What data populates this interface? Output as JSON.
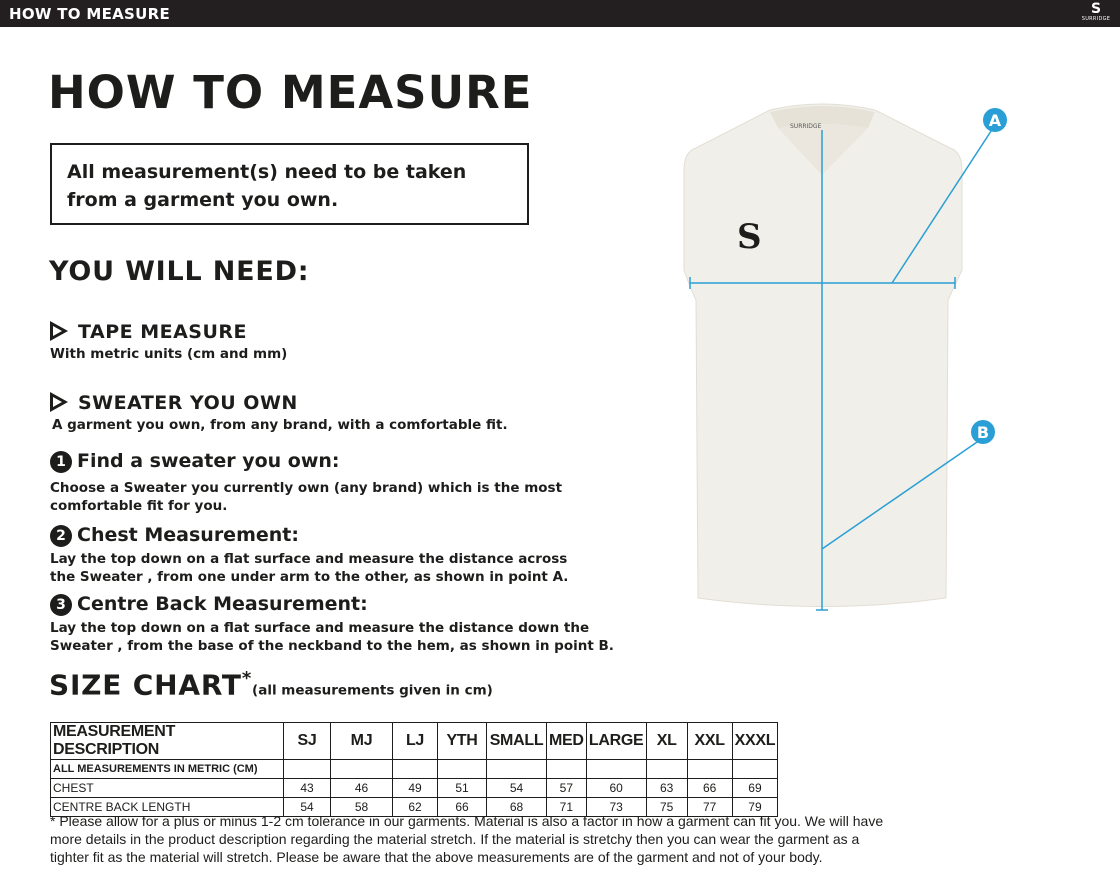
{
  "header": {
    "title": "HOW TO MEASURE",
    "logo_text": "SURRIDGE"
  },
  "title": "HOW TO MEASURE",
  "notice": "All measurement(s) need to be taken from a garment you own.",
  "you_will_need": {
    "heading": "YOU WILL NEED:",
    "items": [
      {
        "title": "TAPE MEASURE",
        "desc": "With metric units (cm and mm)"
      },
      {
        "title": "SWEATER YOU OWN",
        "desc": "A garment you own, from any brand, with a comfortable fit."
      }
    ]
  },
  "steps": [
    {
      "num": "1",
      "title": "Find a sweater you own:",
      "desc": "Choose a Sweater you currently own (any brand) which is the most comfortable fit for you."
    },
    {
      "num": "2",
      "title": "Chest Measurement:",
      "desc": "Lay the top down on a flat surface and measure the distance across the Sweater , from one under arm to the other, as shown in point A."
    },
    {
      "num": "3",
      "title": "Centre Back Measurement:",
      "desc": "Lay the top down on a flat surface and measure the distance down the Sweater , from the base of the neckband to the hem, as shown in point B."
    }
  ],
  "size_chart": {
    "heading": "SIZE CHART",
    "asterisk": "*",
    "subheading": "(all measurements given in cm)",
    "header": [
      "MEASUREMENT DESCRIPTION",
      "SJ",
      "MJ",
      "LJ",
      "YTH",
      "SMALL",
      "MED",
      "LARGE",
      "XL",
      "XXL",
      "XXXL"
    ],
    "metric_label": "ALL MEASUREMENTS IN METRIC (CM)",
    "rows": [
      {
        "label": "CHEST",
        "values": [
          "43",
          "46",
          "49",
          "51",
          "54",
          "57",
          "60",
          "63",
          "66",
          "69"
        ]
      },
      {
        "label": "CENTRE BACK LENGTH",
        "values": [
          "54",
          "58",
          "62",
          "66",
          "68",
          "71",
          "73",
          "75",
          "77",
          "79"
        ]
      }
    ]
  },
  "footnote": "* Please allow for a plus or minus 1-2 cm tolerance in our garments. Material is also a factor in how a garment can fit you. We will have more details in the product description regarding the material stretch.  If the material is stretchy then you can wear the garment as a tighter fit as the material will stretch.  Please be aware that the above measurements are of the garment and not of your body.",
  "diagram": {
    "point_a": "A",
    "point_b": "B",
    "neck_label": "SURRIDGE",
    "accent_color": "#2a9fd6",
    "garment_color": "#f1efe9"
  }
}
